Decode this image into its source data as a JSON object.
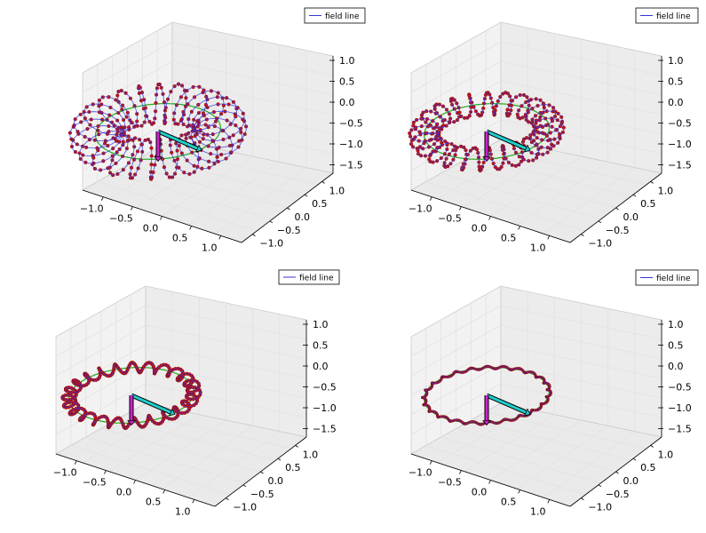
{
  "chart_data": [
    {
      "type": "3d-line",
      "panel": "top-left",
      "legend": [
        "field line"
      ],
      "legend_placement": "top-right",
      "grid": true,
      "xlim": [
        -1.5,
        1.5
      ],
      "ylim": [
        -1.5,
        1.5
      ],
      "zlim": [
        -1.75,
        1.0
      ],
      "x_ticks": [
        "−1.0",
        "−0.5",
        "0.0",
        "0.5",
        "1.0"
      ],
      "y_ticks": [
        "−1.0",
        "−0.5",
        "0.0",
        "0.5",
        "1.0"
      ],
      "z_ticks": [
        "1.0",
        "0.5",
        "0.0",
        "−0.5",
        "−1.0",
        "−1.5"
      ],
      "torus": {
        "major_radius": 0.85,
        "minor_radius": 0.35,
        "field_line_turns": 24
      },
      "arrows": [
        {
          "color": "#22cccc",
          "from": [
            0,
            0,
            0
          ],
          "to": [
            0.8,
            0,
            0
          ]
        },
        {
          "color": "#cc22cc",
          "from": [
            0,
            0,
            0
          ],
          "to": [
            0,
            0,
            -0.6
          ]
        }
      ]
    },
    {
      "type": "3d-line",
      "panel": "top-right",
      "legend": [
        "field line"
      ],
      "legend_placement": "top-right",
      "grid": true,
      "xlim": [
        -1.5,
        1.5
      ],
      "ylim": [
        -1.5,
        1.5
      ],
      "zlim": [
        -1.75,
        1.0
      ],
      "x_ticks": [
        "−1.0",
        "−0.5",
        "0.0",
        "0.5",
        "1.0"
      ],
      "y_ticks": [
        "−1.0",
        "−0.5",
        "0.0",
        "0.5",
        "1.0"
      ],
      "z_ticks": [
        "1.0",
        "0.5",
        "0.0",
        "−0.5",
        "−1.0",
        "−1.5"
      ],
      "torus": {
        "major_radius": 0.85,
        "minor_radius": 0.2,
        "field_line_turns": 24
      },
      "arrows": [
        {
          "color": "#22cccc",
          "from": [
            0,
            0,
            0
          ],
          "to": [
            0.8,
            0,
            0
          ]
        },
        {
          "color": "#cc22cc",
          "from": [
            0,
            0,
            0
          ],
          "to": [
            0,
            0,
            -0.6
          ]
        }
      ]
    },
    {
      "type": "3d-line",
      "panel": "bottom-left",
      "legend": [
        "field line"
      ],
      "legend_placement": "top-right",
      "grid": true,
      "xlim": [
        -1.5,
        1.5
      ],
      "ylim": [
        -1.5,
        1.5
      ],
      "zlim": [
        -1.75,
        1.0
      ],
      "x_ticks": [
        "−1.0",
        "−0.5",
        "0.0",
        "0.5",
        "1.0"
      ],
      "y_ticks": [
        "−1.0",
        "−0.5",
        "0.0",
        "0.5",
        "1.0"
      ],
      "z_ticks": [
        "1.0",
        "0.5",
        "0.0",
        "−0.5",
        "−1.0",
        "−1.5"
      ],
      "torus": {
        "major_radius": 0.85,
        "minor_radius": 0.09,
        "field_line_turns": 24
      },
      "arrows": [
        {
          "color": "#22cccc",
          "from": [
            0,
            0,
            0
          ],
          "to": [
            0.8,
            0,
            0
          ]
        },
        {
          "color": "#cc22cc",
          "from": [
            0,
            0,
            0
          ],
          "to": [
            0,
            0,
            -0.6
          ]
        }
      ]
    },
    {
      "type": "3d-line",
      "panel": "bottom-right",
      "legend": [
        "field line"
      ],
      "legend_placement": "top-right",
      "grid": true,
      "xlim": [
        -1.5,
        1.5
      ],
      "ylim": [
        -1.5,
        1.5
      ],
      "zlim": [
        -1.75,
        1.0
      ],
      "x_ticks": [
        "−1.0",
        "−0.5",
        "0.0",
        "0.5",
        "1.0"
      ],
      "y_ticks": [
        "−1.0",
        "−0.5",
        "0.0",
        "0.5",
        "1.0"
      ],
      "z_ticks": [
        "1.0",
        "0.5",
        "0.0",
        "−0.5",
        "−1.0",
        "−1.5"
      ],
      "torus": {
        "major_radius": 0.85,
        "minor_radius": 0.025,
        "field_line_turns": 24
      },
      "arrows": [
        {
          "color": "#22cccc",
          "from": [
            0,
            0,
            0
          ],
          "to": [
            0.8,
            0,
            0
          ]
        },
        {
          "color": "#cc22cc",
          "from": [
            0,
            0,
            0
          ],
          "to": [
            0,
            0,
            -0.6
          ]
        }
      ]
    }
  ],
  "colors": {
    "field_line": "#3333dd",
    "marker": "#cc1111",
    "inner_line": "#22aa22",
    "pane_fill": "#f2f2f2",
    "pane_edge": "#cccccc",
    "grid": "#e2e2e2"
  }
}
